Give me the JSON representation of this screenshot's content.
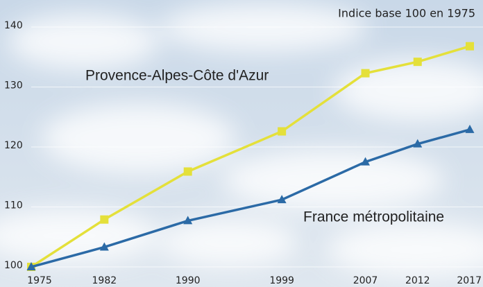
{
  "chart_data": {
    "type": "line",
    "annotation": "Indice base 100 en 1975",
    "x": [
      1975,
      1982,
      1990,
      1999,
      2007,
      2012,
      2017
    ],
    "series": [
      {
        "name": "Provence-Alpes-Côte d'Azur",
        "color": "#e4e03a",
        "marker": "square",
        "values": [
          100,
          107.9,
          115.9,
          122.6,
          132.3,
          134.2,
          136.8
        ]
      },
      {
        "name": "France métropolitaine",
        "color": "#2b6aa6",
        "marker": "triangle",
        "values": [
          100,
          103.3,
          107.7,
          111.2,
          117.5,
          120.5,
          122.9
        ]
      }
    ],
    "xlim": [
      1975,
      2017
    ],
    "xticks": [
      1975,
      1982,
      1990,
      1999,
      2007,
      2012,
      2017
    ],
    "ylim": [
      100,
      140
    ],
    "yticks": [
      100,
      110,
      120,
      130,
      140
    ],
    "grid": true
  }
}
